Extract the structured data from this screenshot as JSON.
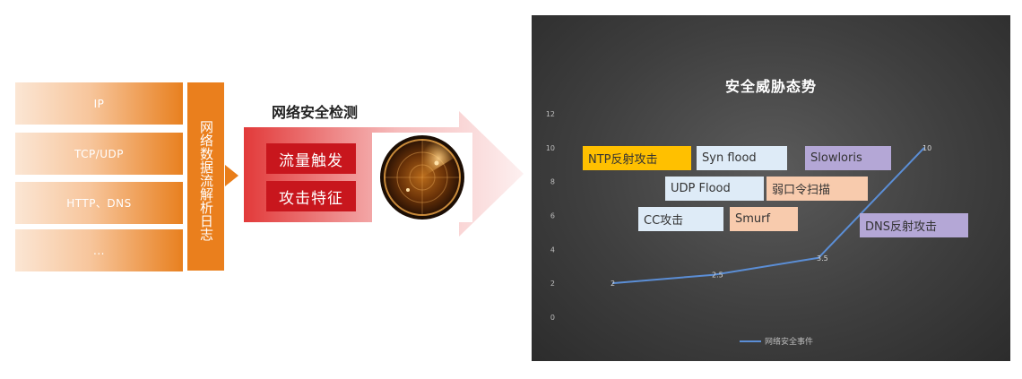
{
  "left": {
    "protocols": [
      "IP",
      "TCP/UDP",
      "HTTP、DNS",
      "..."
    ],
    "log_label": "网络数据流解析日志"
  },
  "middle": {
    "title": "网络安全检测",
    "tags": [
      "流量触发",
      "攻击特征"
    ],
    "radar_icon": "radar-icon"
  },
  "chart_data": {
    "type": "line",
    "title": "安全威胁态势",
    "ylim": [
      0,
      12
    ],
    "yticks": [
      "0",
      "2",
      "4",
      "6",
      "8",
      "10",
      "12"
    ],
    "series": [
      {
        "name": "网络安全事件",
        "values": [
          2,
          2.5,
          3.5,
          10
        ],
        "labels": [
          "2",
          "2.5",
          "3.5",
          "10"
        ]
      }
    ],
    "line_color": "#5b8ed6",
    "legend_position": "bottom",
    "annotations": [
      {
        "text": "NTP反射攻击",
        "color": "#ffc000"
      },
      {
        "text": "Syn flood",
        "color": "#deebf7"
      },
      {
        "text": "Slowloris",
        "color": "#b4a7d6"
      },
      {
        "text": "UDP Flood",
        "color": "#deebf7"
      },
      {
        "text": "弱口令扫描",
        "color": "#f8cbad"
      },
      {
        "text": "CC攻击",
        "color": "#deebf7"
      },
      {
        "text": "Smurf",
        "color": "#f8cbad"
      },
      {
        "text": "DNS反射攻击",
        "color": "#b4a7d6"
      }
    ]
  }
}
